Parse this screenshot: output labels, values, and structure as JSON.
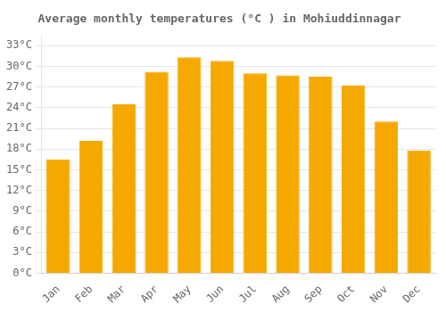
{
  "chart_data": {
    "type": "bar",
    "title": "Average monthly temperatures (°C ) in Mohiuddinnagar",
    "categories": [
      "Jan",
      "Feb",
      "Mar",
      "Apr",
      "May",
      "Jun",
      "Jul",
      "Aug",
      "Sep",
      "Oct",
      "Nov",
      "Dec"
    ],
    "values": [
      16.5,
      19.2,
      24.5,
      29.2,
      31.3,
      30.8,
      29.0,
      28.7,
      28.5,
      27.2,
      22.0,
      17.8
    ],
    "color": "#F5A800",
    "ylim": [
      0,
      34.5
    ],
    "yticks": [
      {
        "value": 0,
        "label": "0°C"
      },
      {
        "value": 3,
        "label": "3°C"
      },
      {
        "value": 6,
        "label": "6°C"
      },
      {
        "value": 9,
        "label": "9°C"
      },
      {
        "value": 12,
        "label": "12°C"
      },
      {
        "value": 15,
        "label": "15°C"
      },
      {
        "value": 18,
        "label": "18°C"
      },
      {
        "value": 21,
        "label": "21°C"
      },
      {
        "value": 24,
        "label": "24°C"
      },
      {
        "value": 27,
        "label": "27°C"
      },
      {
        "value": 30,
        "label": "30°C"
      },
      {
        "value": 33,
        "label": "33°C"
      }
    ],
    "grid": true
  }
}
